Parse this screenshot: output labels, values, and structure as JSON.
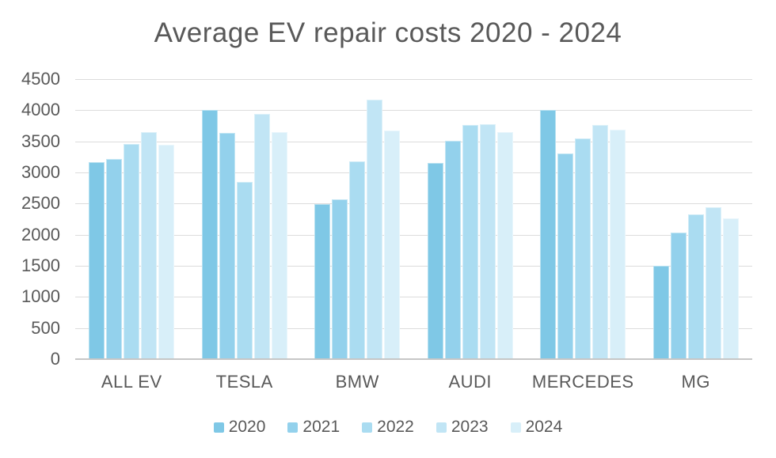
{
  "title": "Average EV repair costs 2020 - 2024",
  "palette": {
    "background": "#ffffff",
    "title_text": "#595959",
    "axis_text": "#595959",
    "gridline": "#dcdcdc",
    "baseline": "#c6c6c6"
  },
  "chart_data": {
    "type": "bar",
    "title": "Average EV repair costs 2020 - 2024",
    "categories": [
      "ALL EV",
      "TESLA",
      "BMW",
      "AUDI",
      "MERCEDES",
      "MG"
    ],
    "series": [
      {
        "name": "2020",
        "color": "#7fc8e6",
        "values": [
          3170,
          4000,
          2490,
          3150,
          4010,
          1500
        ]
      },
      {
        "name": "2021",
        "color": "#93d1ec",
        "values": [
          3210,
          3630,
          2570,
          3510,
          3300,
          2040
        ]
      },
      {
        "name": "2022",
        "color": "#aadcf1",
        "values": [
          3460,
          2850,
          3180,
          3760,
          3550,
          2330
        ]
      },
      {
        "name": "2023",
        "color": "#c1e5f5",
        "values": [
          3650,
          3940,
          4170,
          3780,
          3760,
          2440
        ]
      },
      {
        "name": "2024",
        "color": "#d8eff9",
        "values": [
          3440,
          3650,
          3670,
          3650,
          3690,
          2260
        ]
      }
    ],
    "xlabel": "",
    "ylabel": "",
    "ylim": [
      0,
      4500
    ],
    "ytick_step": 500,
    "ytick_labels": [
      "0",
      "500",
      "1000",
      "1500",
      "2000",
      "2500",
      "3000",
      "3500",
      "4000",
      "4500"
    ],
    "grid": "horizontal",
    "legend_position": "bottom"
  }
}
